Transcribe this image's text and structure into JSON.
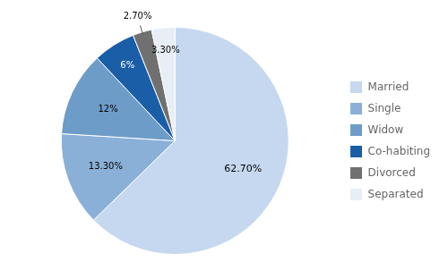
{
  "chart_data": {
    "type": "pie",
    "categories": [
      "Married",
      "Single",
      "Widow",
      "Co-habiting",
      "Divorced",
      "Separated"
    ],
    "values": [
      62.7,
      13.3,
      12,
      6,
      2.7,
      3.3
    ],
    "value_labels": [
      "62.70%",
      "13.30%",
      "12%",
      "6%",
      "2.70%",
      "3.30%"
    ],
    "colors": [
      "#c5d8f0",
      "#8ab0d8",
      "#6e9cc8",
      "#1a5ea8",
      "#707070",
      "#e8eef5"
    ],
    "data_labels": true,
    "legend": "right"
  }
}
